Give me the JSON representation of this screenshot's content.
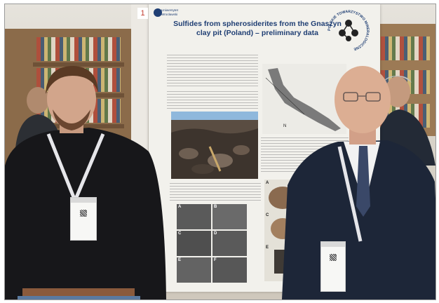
{
  "photo": {
    "subject_left": "young man in black shirt with conference badge",
    "subject_right": "bald man in suit with conference badge"
  },
  "poster": {
    "number": "1",
    "title": "Sulfides from spherosiderites from the Gnaszyn clay pit (Poland) – preliminary data",
    "university_line1": "Uniwersytet",
    "university_line2": "Wrocławski",
    "logo_text": "POLSKIE TOWARZYSTWO MINERALOGICZNE",
    "micro_labels": [
      "A",
      "B",
      "C",
      "D",
      "E",
      "F"
    ],
    "sample_labels": [
      "A",
      "C",
      "E"
    ],
    "map_label": "N"
  },
  "badges": {
    "left": "",
    "right": ""
  }
}
